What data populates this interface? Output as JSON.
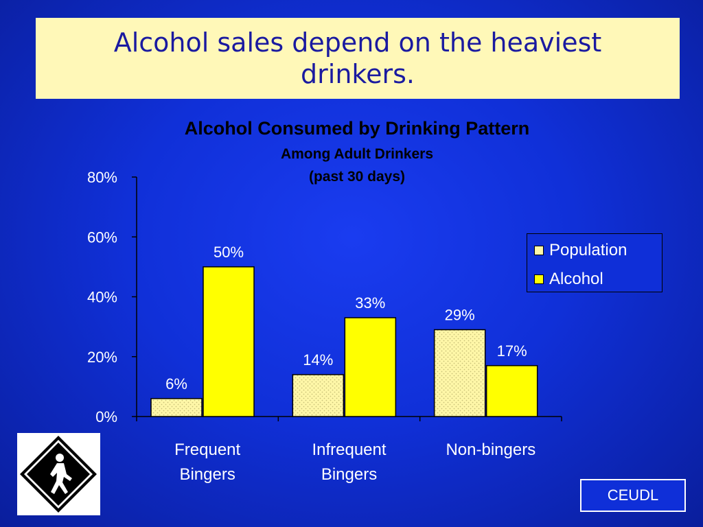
{
  "slide": {
    "title": "Alcohol sales depend on the heaviest drinkers.",
    "brand": "CEUDL"
  },
  "colors": {
    "background": "#1030d8",
    "title_box": "#fff8b8",
    "title_text": "#1a1aa0",
    "population": "#fff7a8",
    "population_dots": "#c9c27a",
    "alcohol": "#ffff00"
  },
  "icons": {
    "sign": "pedestrian-crossing-sign-icon"
  },
  "chart_data": {
    "type": "bar",
    "title": "Alcohol Consumed by Drinking Pattern",
    "subtitle_line1": "Among Adult Drinkers",
    "subtitle_line2": "(past 30 days)",
    "categories": [
      [
        "Frequent",
        "Bingers"
      ],
      [
        "Infrequent",
        "Bingers"
      ],
      [
        "Non-bingers"
      ]
    ],
    "series": [
      {
        "name": "Population",
        "values": [
          6,
          14,
          29
        ],
        "labels": [
          "6%",
          "14%",
          "29%"
        ]
      },
      {
        "name": "Alcohol",
        "values": [
          50,
          33,
          17
        ],
        "labels": [
          "50%",
          "33%",
          "17%"
        ]
      }
    ],
    "ylim": [
      0,
      80
    ],
    "yticks": [
      "0%",
      "20%",
      "40%",
      "60%",
      "80%"
    ],
    "legend_position": "right"
  }
}
